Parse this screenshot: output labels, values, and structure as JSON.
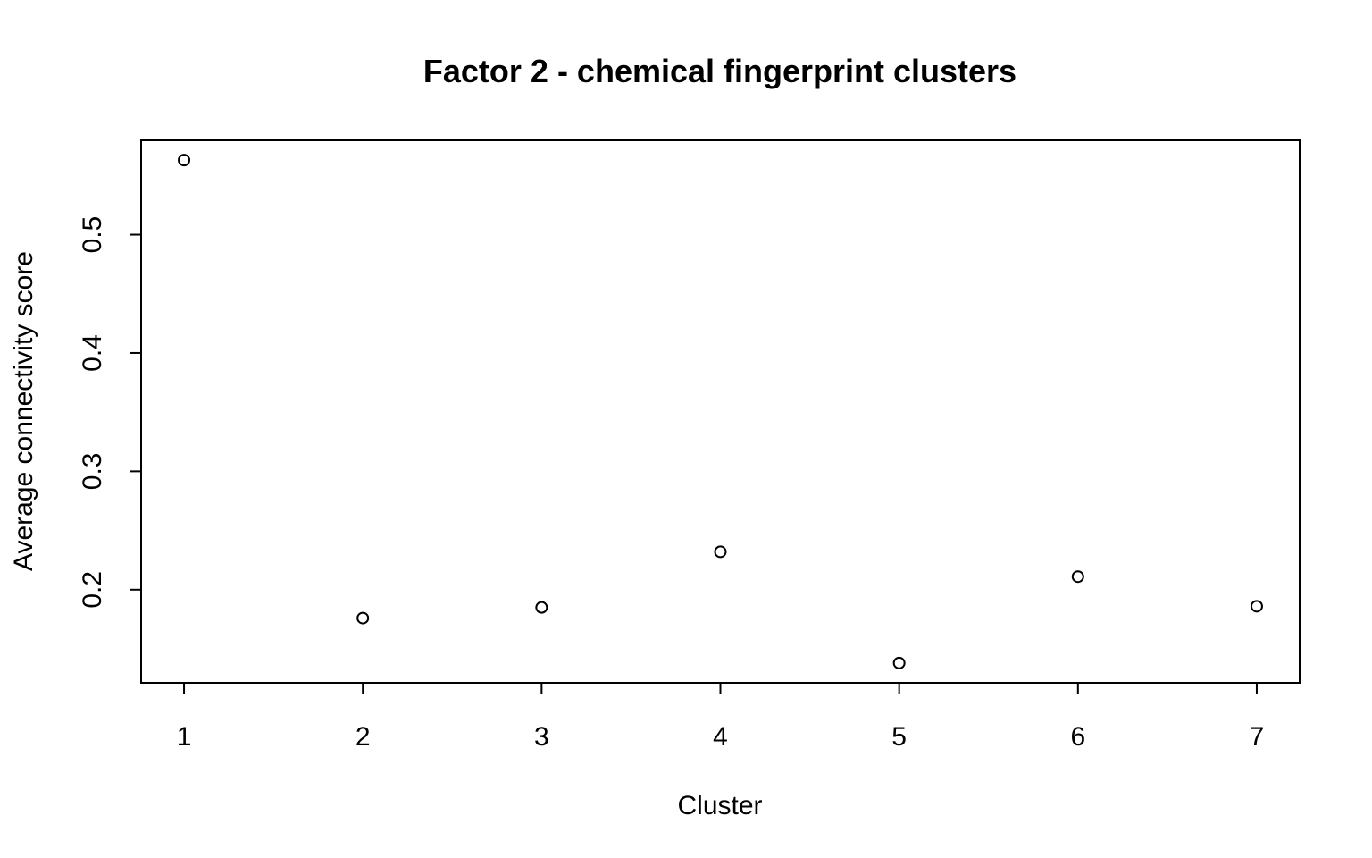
{
  "chart_data": {
    "type": "scatter",
    "title": "Factor 2 - chemical fingerprint clusters",
    "xlabel": "Cluster",
    "ylabel": "Average connectivity score",
    "x": [
      1,
      2,
      3,
      4,
      5,
      6,
      7
    ],
    "y": [
      0.563,
      0.176,
      0.185,
      0.232,
      0.138,
      0.211,
      0.186
    ],
    "xticks": [
      "1",
      "2",
      "3",
      "4",
      "5",
      "6",
      "7"
    ],
    "yticks": [
      "0.2",
      "0.3",
      "0.4",
      "0.5"
    ],
    "xlim": [
      0.76,
      7.24
    ],
    "ylim": [
      0.1213,
      0.5797
    ],
    "grid": false,
    "marker": "open-circle"
  }
}
